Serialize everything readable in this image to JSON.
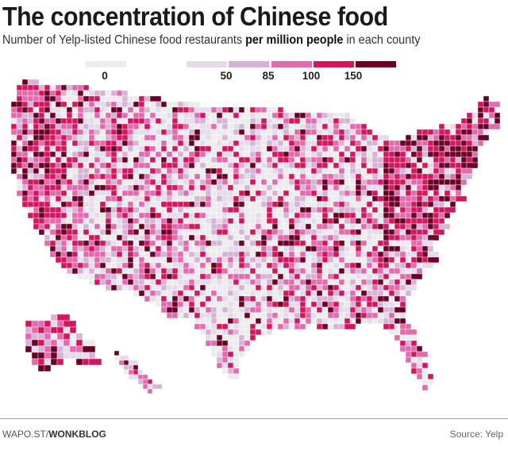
{
  "title": "The concentration of Chinese food",
  "subtitle": {
    "pre": "Number of Yelp-listed Chinese food restaurants ",
    "bold": "per million people",
    "post": " in each county"
  },
  "legend": {
    "zero": {
      "label": "0",
      "color": "#ececec"
    },
    "bins": [
      {
        "label": "50",
        "color": "#e4dcea"
      },
      {
        "label": "85",
        "color": "#d7b4d6"
      },
      {
        "label": "100",
        "color": "#e36aaf"
      },
      {
        "label": "150",
        "color": "#d3175e"
      },
      {
        "label": "",
        "color": "#6a0023"
      }
    ]
  },
  "map": {
    "region": "United States counties",
    "includes": [
      "contiguous US",
      "Alaska",
      "Hawaii"
    ]
  },
  "footer": {
    "credit_pre": "WAPO.ST/",
    "credit_bold": "WONKBLOG",
    "source": "Source: Yelp"
  }
}
